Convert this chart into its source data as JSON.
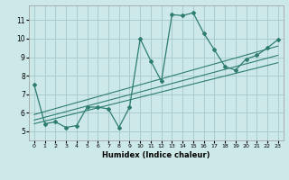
{
  "title": "",
  "xlabel": "Humidex (Indice chaleur)",
  "bg_color": "#cce8e8",
  "grid_color": "#aacccc",
  "line_color": "#2e7d6e",
  "xlim": [
    -0.5,
    23.5
  ],
  "ylim": [
    4.5,
    11.8
  ],
  "xticks": [
    0,
    1,
    2,
    3,
    4,
    5,
    6,
    7,
    8,
    9,
    10,
    11,
    12,
    13,
    14,
    15,
    16,
    17,
    18,
    19,
    20,
    21,
    22,
    23
  ],
  "yticks": [
    5,
    6,
    7,
    8,
    9,
    10,
    11
  ],
  "main_x": [
    0,
    1,
    2,
    3,
    4,
    5,
    6,
    7,
    8,
    9,
    10,
    11,
    12,
    13,
    14,
    15,
    16,
    17,
    18,
    19,
    20,
    21,
    22,
    23
  ],
  "main_y": [
    7.5,
    5.4,
    5.5,
    5.2,
    5.3,
    6.3,
    6.3,
    6.2,
    5.2,
    6.3,
    10.0,
    8.8,
    7.7,
    11.3,
    11.25,
    11.4,
    10.3,
    9.4,
    8.5,
    8.3,
    8.9,
    9.1,
    9.5,
    9.95
  ],
  "line2_x": [
    0,
    23
  ],
  "line2_y": [
    5.4,
    8.7
  ],
  "line3_x": [
    0,
    23
  ],
  "line3_y": [
    5.6,
    9.1
  ],
  "line4_x": [
    0,
    23
  ],
  "line4_y": [
    5.9,
    9.6
  ]
}
